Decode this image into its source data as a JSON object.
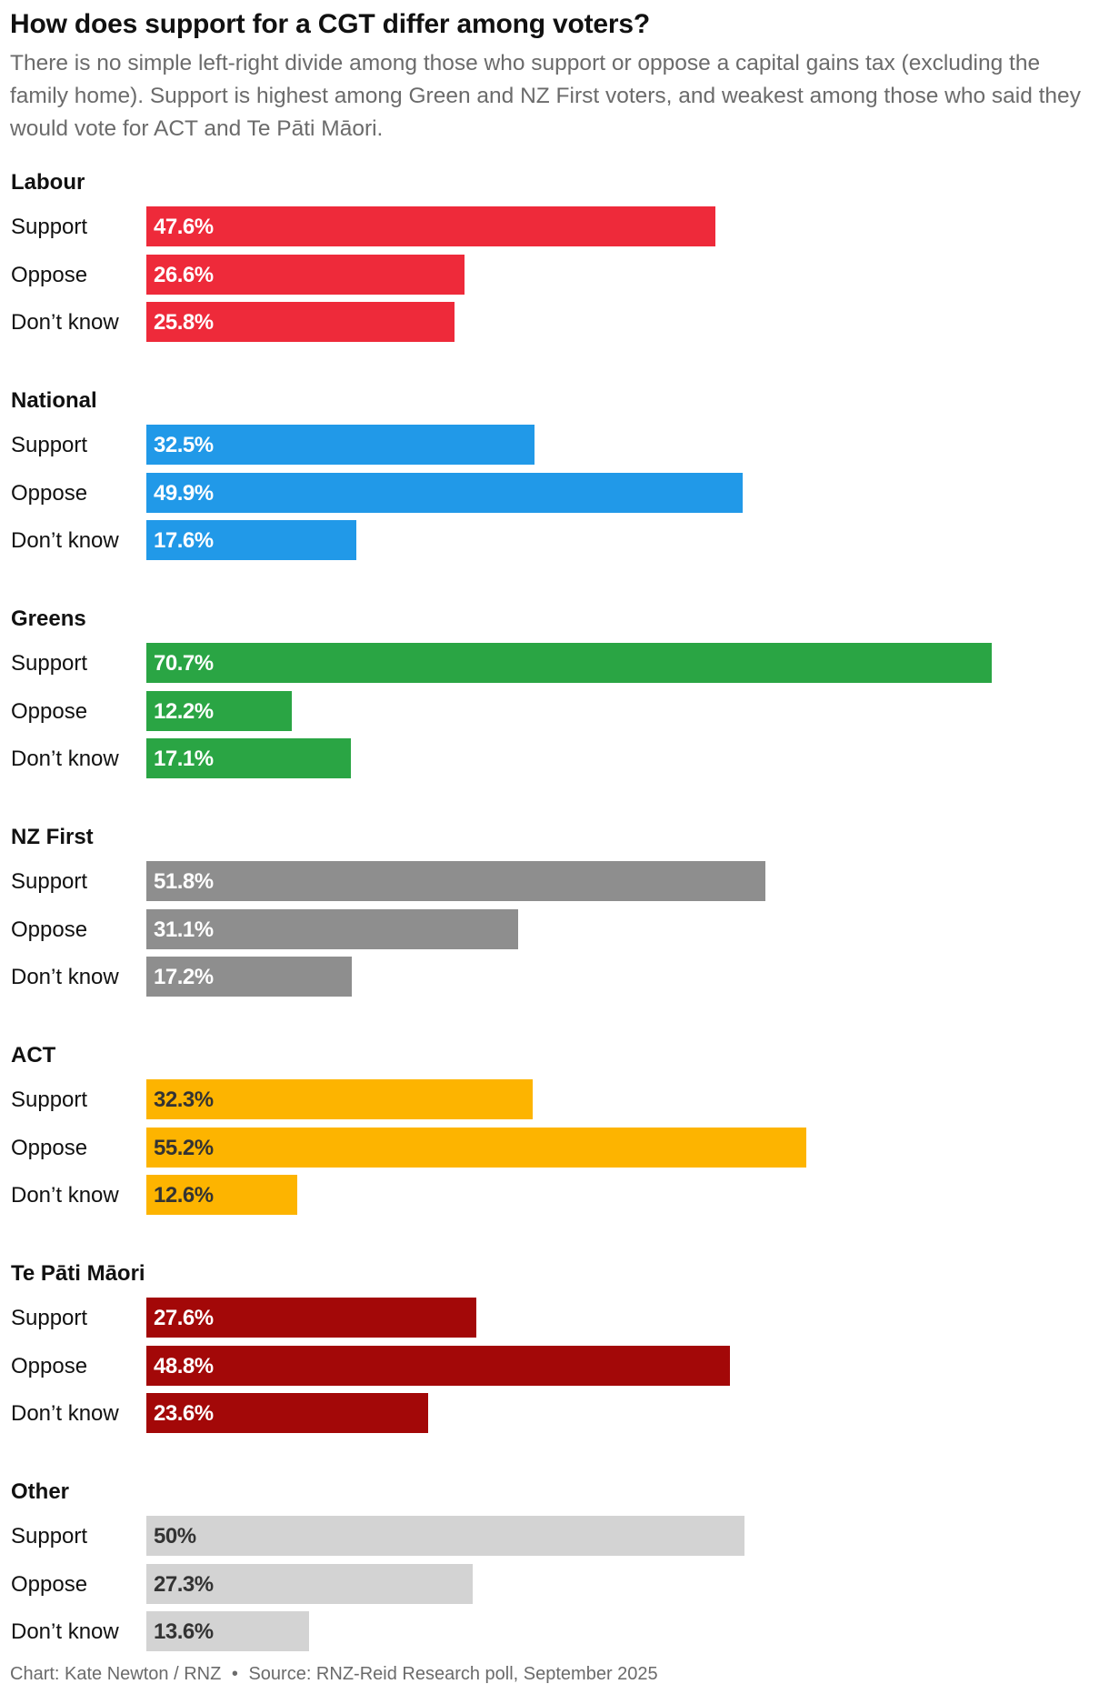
{
  "title": "How does support for a CGT differ among voters?",
  "subtitle": "There is no simple left-right divide among those who support or oppose a capital gains tax (excluding the family home). Support is highest among Green and NZ First voters, and weakest among those who said they would vote for ACT and Te Pāti Māori.",
  "footer": {
    "credit": "Chart: Kate Newton / RNZ",
    "separator": "•",
    "source": "Source: RNZ-Reid Research poll, September 2025"
  },
  "chart_data": {
    "type": "bar",
    "orientation": "horizontal",
    "value_unit": "%",
    "xlim": [
      0,
      80
    ],
    "grid": false,
    "legend": "none",
    "categories": [
      "Support",
      "Oppose",
      "Don’t know"
    ],
    "groups": [
      {
        "name": "Labour",
        "color": "#ee2a3a",
        "label_color": "#ffffff",
        "values": [
          47.6,
          26.6,
          25.8
        ],
        "labels": [
          "47.6%",
          "26.6%",
          "25.8%"
        ]
      },
      {
        "name": "National",
        "color": "#2199e8",
        "label_color": "#ffffff",
        "values": [
          32.5,
          49.9,
          17.6
        ],
        "labels": [
          "32.5%",
          "49.9%",
          "17.6%"
        ]
      },
      {
        "name": "Greens",
        "color": "#2aa544",
        "label_color": "#ffffff",
        "values": [
          70.7,
          12.2,
          17.1
        ],
        "labels": [
          "70.7%",
          "12.2%",
          "17.1%"
        ]
      },
      {
        "name": "NZ First",
        "color": "#8e8e8e",
        "label_color": "#ffffff",
        "values": [
          51.8,
          31.1,
          17.2
        ],
        "labels": [
          "51.8%",
          "31.1%",
          "17.2%"
        ]
      },
      {
        "name": "ACT",
        "color": "#fdb400",
        "label_color": "#333333",
        "values": [
          32.3,
          55.2,
          12.6
        ],
        "labels": [
          "32.3%",
          "55.2%",
          "12.6%"
        ]
      },
      {
        "name": "Te Pāti Māori",
        "color": "#a30808",
        "label_color": "#ffffff",
        "values": [
          27.6,
          48.8,
          23.6
        ],
        "labels": [
          "27.6%",
          "48.8%",
          "23.6%"
        ]
      },
      {
        "name": "Other",
        "color": "#d3d3d3",
        "label_color": "#333333",
        "values": [
          50,
          27.3,
          13.6
        ],
        "labels": [
          "50%",
          "27.3%",
          "13.6%"
        ]
      }
    ]
  }
}
